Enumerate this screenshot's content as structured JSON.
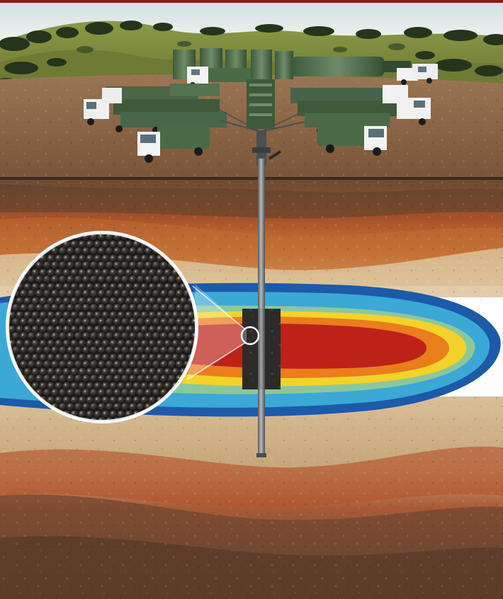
{
  "illustration": {
    "subject": "hydraulic-fracturing-well-site",
    "elements": [
      "top-red-border",
      "sky",
      "forested-hills",
      "dirt-well-pad",
      "truck-fleet",
      "storage-tanks",
      "wellhead",
      "vertical-wellbore",
      "rock-strata",
      "fracture-heat-zone",
      "perforation-block",
      "proppant-magnifier-circle"
    ]
  },
  "colors": {
    "border_red": "#8b1a1a",
    "sky": "#d9e6ea",
    "hill_green": "#7a8a3c",
    "tree_dark": "#25351c",
    "pad_brown": "#8a6446",
    "equipment_green": "#3f5a3a",
    "truck_white": "#f2f2f2",
    "well_grey": "#75797c",
    "strata_orange": "#c8662d",
    "strata_tan": "#dcc39b",
    "strata_dark": "#5f3b27",
    "zone_red": "#b51f1f",
    "zone_orange": "#ef8c1c",
    "zone_yellow": "#f2d42b",
    "zone_cyan": "#4fc3dd",
    "zone_blue": "#1f6eb5",
    "proppant_dark": "#3b3533"
  }
}
